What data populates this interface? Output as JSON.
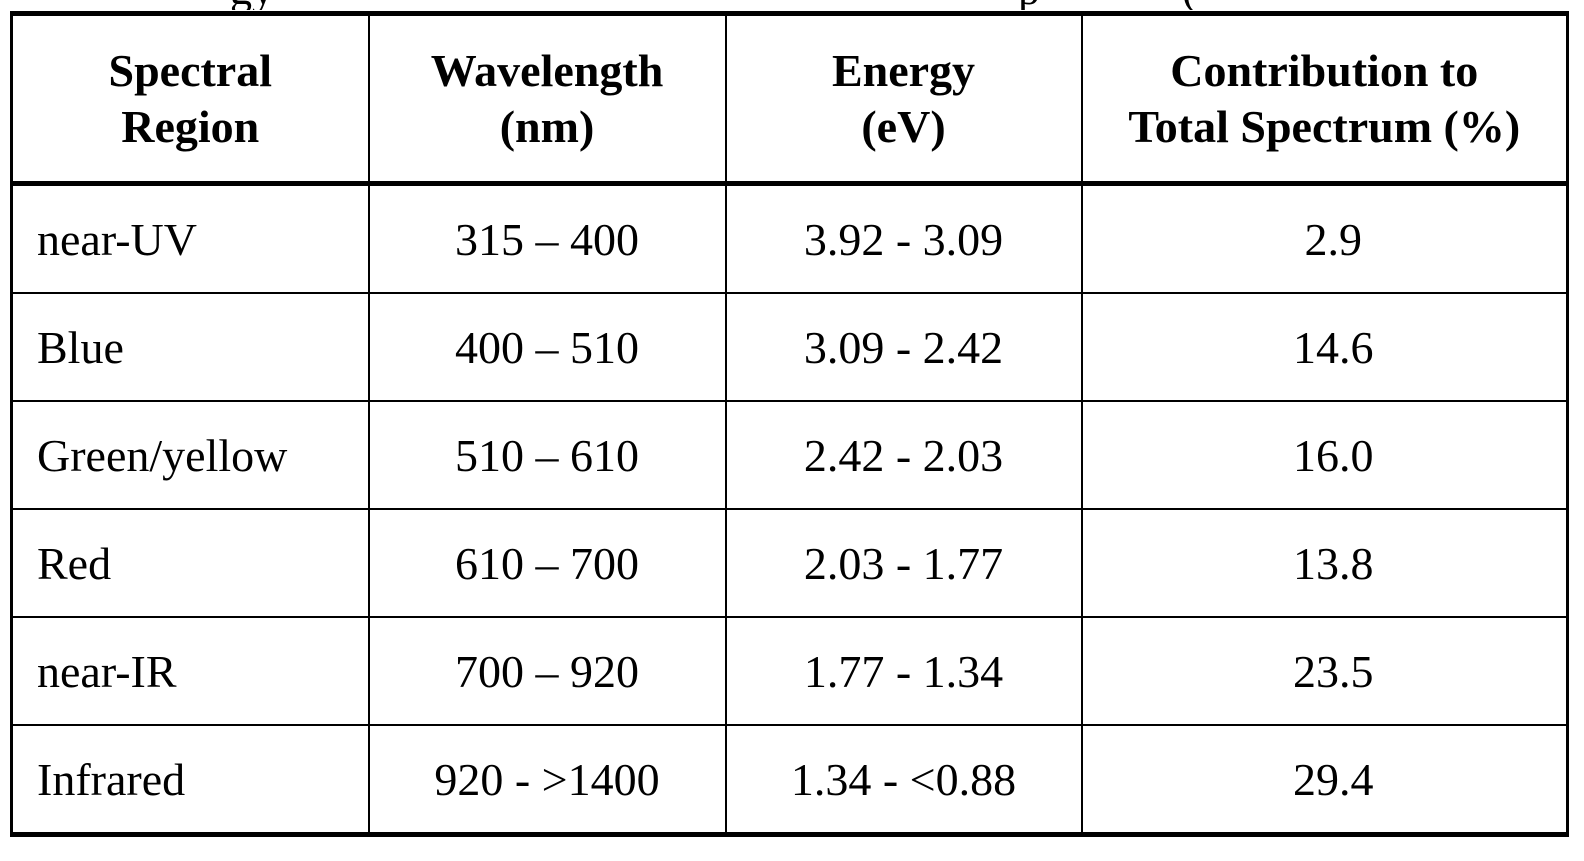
{
  "caption_fragment": {
    "left": "gy",
    "middle": "p",
    "right": "("
  },
  "table": {
    "headers": [
      {
        "line1": "Spectral",
        "line2": "Region"
      },
      {
        "line1": "Wavelength",
        "line2": "(nm)"
      },
      {
        "line1": "Energy",
        "line2": "(eV)"
      },
      {
        "line1": "Contribution to",
        "line2": "Total Spectrum (%)"
      }
    ],
    "rows": [
      {
        "region": "near-UV",
        "wavelength": "315 – 400",
        "energy": "3.92 - 3.09",
        "contribution": "2.9"
      },
      {
        "region": "Blue",
        "wavelength": "400 – 510",
        "energy": "3.09 - 2.42",
        "contribution": "14.6"
      },
      {
        "region": "Green/yellow",
        "wavelength": "510 – 610",
        "energy": "2.42 - 2.03",
        "contribution": "16.0"
      },
      {
        "region": "Red",
        "wavelength": "610 – 700",
        "energy": "2.03 - 1.77",
        "contribution": "13.8"
      },
      {
        "region": "near-IR",
        "wavelength": "700 – 920",
        "energy": "1.77 - 1.34",
        "contribution": "23.5"
      },
      {
        "region": "Infrared",
        "wavelength": "920 - >1400",
        "energy": "1.34 - <0.88",
        "contribution": "29.4"
      }
    ]
  }
}
